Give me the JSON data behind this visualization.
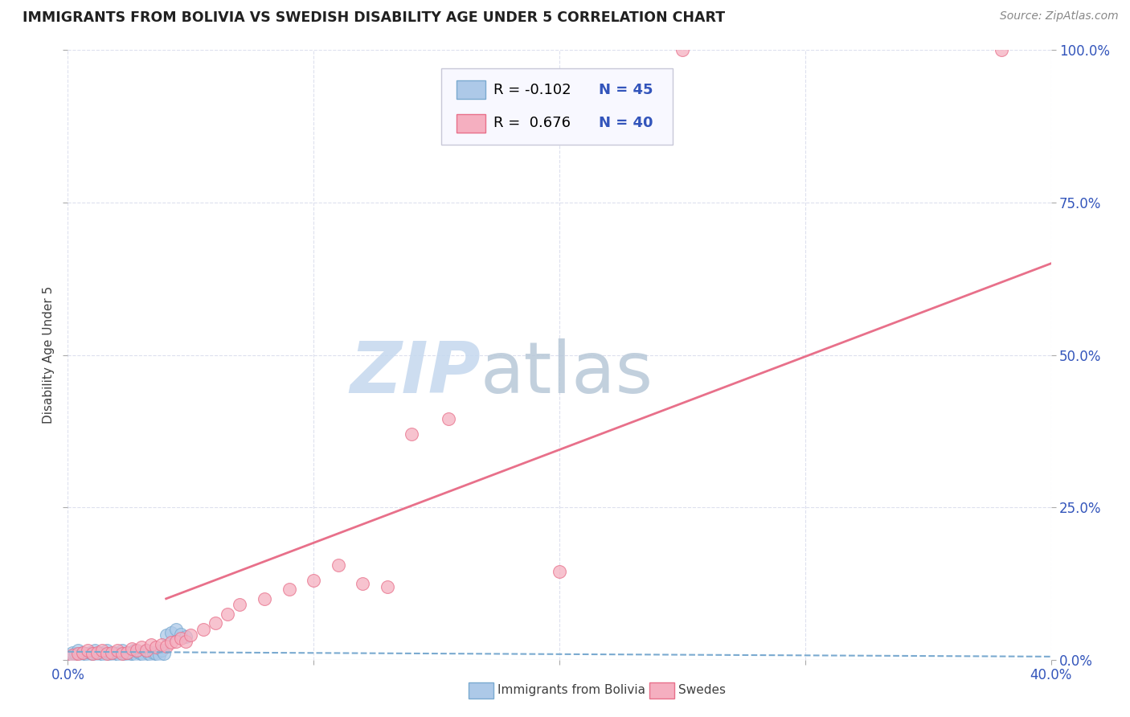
{
  "title": "IMMIGRANTS FROM BOLIVIA VS SWEDISH DISABILITY AGE UNDER 5 CORRELATION CHART",
  "source": "Source: ZipAtlas.com",
  "ylabel": "Disability Age Under 5",
  "xlim": [
    0.0,
    0.4
  ],
  "ylim": [
    0.0,
    1.0
  ],
  "xticks": [
    0.0,
    0.1,
    0.2,
    0.3,
    0.4
  ],
  "xtick_labels_show": [
    "0.0%",
    "",
    "",
    "",
    "40.0%"
  ],
  "yticks": [
    0.0,
    0.25,
    0.5,
    0.75,
    1.0
  ],
  "ytick_labels_right": [
    "0.0%",
    "25.0%",
    "50.0%",
    "75.0%",
    "100.0%"
  ],
  "legend_r1": "R = -0.102",
  "legend_n1": "N = 45",
  "legend_r2": "R =  0.676",
  "legend_n2": "N = 40",
  "blue_color": "#adc9e8",
  "pink_color": "#f5afc0",
  "blue_edge_color": "#7aaad0",
  "pink_edge_color": "#e8708a",
  "blue_line_color": "#7aaad0",
  "pink_line_color": "#e8708a",
  "watermark_zip": "ZIP",
  "watermark_atlas": "atlas",
  "watermark_color_zip": "#c5d8ee",
  "watermark_color_atlas": "#b8c8d8",
  "blue_scatter_x": [
    0.001,
    0.002,
    0.002,
    0.003,
    0.004,
    0.005,
    0.006,
    0.007,
    0.008,
    0.009,
    0.01,
    0.011,
    0.012,
    0.013,
    0.014,
    0.015,
    0.016,
    0.017,
    0.018,
    0.019,
    0.02,
    0.021,
    0.022,
    0.023,
    0.024,
    0.025,
    0.026,
    0.027,
    0.028,
    0.029,
    0.03,
    0.031,
    0.032,
    0.033,
    0.034,
    0.035,
    0.036,
    0.037,
    0.038,
    0.039,
    0.04,
    0.042,
    0.044,
    0.046,
    0.048
  ],
  "blue_scatter_y": [
    0.005,
    0.008,
    0.012,
    0.01,
    0.015,
    0.008,
    0.012,
    0.01,
    0.008,
    0.012,
    0.01,
    0.015,
    0.008,
    0.012,
    0.01,
    0.008,
    0.015,
    0.01,
    0.008,
    0.012,
    0.01,
    0.008,
    0.015,
    0.01,
    0.008,
    0.012,
    0.01,
    0.015,
    0.008,
    0.012,
    0.01,
    0.008,
    0.015,
    0.01,
    0.008,
    0.012,
    0.01,
    0.008,
    0.015,
    0.01,
    0.04,
    0.045,
    0.05,
    0.042,
    0.038
  ],
  "pink_scatter_x": [
    0.002,
    0.004,
    0.006,
    0.008,
    0.01,
    0.012,
    0.014,
    0.016,
    0.018,
    0.02,
    0.022,
    0.024,
    0.026,
    0.028,
    0.03,
    0.032,
    0.034,
    0.036,
    0.038,
    0.04,
    0.042,
    0.044,
    0.046,
    0.048,
    0.05,
    0.055,
    0.06,
    0.065,
    0.07,
    0.08,
    0.09,
    0.1,
    0.11,
    0.12,
    0.13,
    0.14,
    0.155,
    0.2,
    0.25,
    0.38
  ],
  "pink_scatter_y": [
    0.008,
    0.01,
    0.012,
    0.015,
    0.01,
    0.012,
    0.015,
    0.01,
    0.012,
    0.015,
    0.01,
    0.012,
    0.018,
    0.015,
    0.02,
    0.015,
    0.025,
    0.02,
    0.025,
    0.022,
    0.028,
    0.03,
    0.035,
    0.03,
    0.04,
    0.05,
    0.06,
    0.075,
    0.09,
    0.1,
    0.115,
    0.13,
    0.155,
    0.125,
    0.12,
    0.37,
    0.395,
    0.145,
    1.0,
    1.0
  ],
  "blue_regline_x": [
    0.0,
    0.4
  ],
  "blue_regline_y": [
    0.013,
    0.005
  ],
  "pink_regline_x": [
    0.04,
    0.4
  ],
  "pink_regline_y": [
    0.1,
    0.65
  ],
  "legend_box_color": "#f8f8ff",
  "legend_border_color": "#c8c8d8",
  "title_color": "#202020",
  "axis_label_color": "#404040",
  "right_tick_color": "#3355bb",
  "bottom_tick_color": "#3355bb",
  "grid_color": "#dde0ee",
  "figwidth": 14.06,
  "figheight": 8.92
}
